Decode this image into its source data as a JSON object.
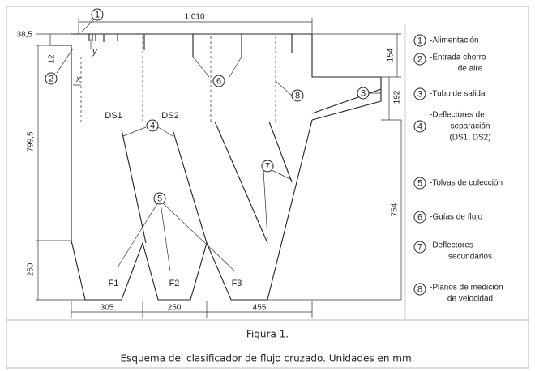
{
  "dimensions": {
    "width": "1.010",
    "top_offset": "38,5",
    "inlet_gap": "12",
    "outlet_top": "154",
    "outlet_height": "192",
    "chamber_height": "799,5",
    "right_height": "754",
    "hopper_height": "250",
    "hopper_1": "305",
    "hopper_2": "250",
    "hopper_3": "455"
  },
  "labels": {
    "x": "x",
    "y": "y",
    "ds1": "DS1",
    "ds2": "DS2",
    "f1": "F1",
    "f2": "F2",
    "f3": "F3"
  },
  "legend": [
    {
      "number": "1",
      "lines": [
        "-Alimentación"
      ]
    },
    {
      "number": "2",
      "lines": [
        "-Entrada chorro",
        "de aire"
      ]
    },
    {
      "number": "3",
      "lines": [
        "-Tubo de salida"
      ]
    },
    {
      "number": "4",
      "lines": [
        "-Deflectores de",
        "separación",
        "(DS1; DS2)"
      ]
    },
    {
      "number": "5",
      "lines": [
        "-Tolvas de colección"
      ]
    },
    {
      "number": "6",
      "lines": [
        "-Guías de flujo"
      ]
    },
    {
      "number": "7",
      "lines": [
        "-Deflectores",
        "secundarios"
      ]
    },
    {
      "number": "8",
      "lines": [
        "-Planos de medición",
        "de velocidad"
      ]
    }
  ],
  "caption": {
    "title": "Figura 1.",
    "text": "Esquema del clasificador de flujo cruzado. Unidades en mm."
  }
}
